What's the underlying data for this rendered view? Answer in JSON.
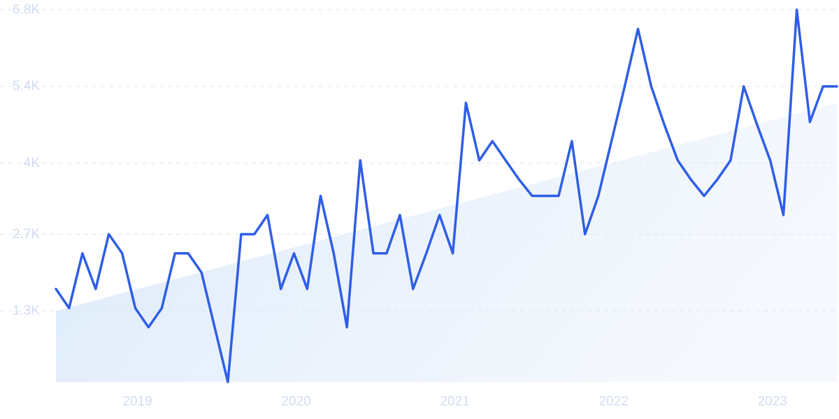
{
  "chart_data": {
    "type": "line",
    "title": "",
    "xlabel": "",
    "ylabel": "",
    "y_ticks": [
      {
        "value": 1300,
        "label": "1.3K"
      },
      {
        "value": 2700,
        "label": "2.7K"
      },
      {
        "value": 4000,
        "label": "4K"
      },
      {
        "value": 5400,
        "label": "5.4K"
      },
      {
        "value": 6800,
        "label": "6.8K"
      }
    ],
    "x_ticks": [
      {
        "value": 2019.0,
        "label": "2019"
      },
      {
        "value": 2020.0,
        "label": "2020"
      },
      {
        "value": 2021.0,
        "label": "2021"
      },
      {
        "value": 2022.0,
        "label": "2022"
      },
      {
        "value": 2023.0,
        "label": "2023"
      }
    ],
    "xlim": [
      2018.5,
      2023.42
    ],
    "ylim": [
      0,
      6800
    ],
    "grid": true,
    "colors": {
      "line": "#2f5ee6",
      "grid": "#dce6f5",
      "tick": "#d3ddf1",
      "trend_fill": "#d6e6f8"
    },
    "trend": {
      "x": [
        2018.5,
        2023.42
      ],
      "y": [
        1300,
        5100
      ]
    },
    "series": [
      {
        "x": [
          2018.5,
          2018.583,
          2018.667,
          2018.75,
          2018.833,
          2018.917,
          2019.0,
          2019.083,
          2019.167,
          2019.25,
          2019.333,
          2019.417,
          2019.5,
          2019.583,
          2019.667,
          2019.75,
          2019.833,
          2019.917,
          2020.0,
          2020.083,
          2020.167,
          2020.25,
          2020.333,
          2020.417,
          2020.5,
          2020.583,
          2020.667,
          2020.75,
          2020.833,
          2020.917,
          2021.0,
          2021.083,
          2021.167,
          2021.25,
          2021.333,
          2021.417,
          2021.5,
          2021.583,
          2021.667,
          2021.75,
          2021.833,
          2021.917,
          2022.0,
          2022.083,
          2022.167,
          2022.25,
          2022.333,
          2022.417,
          2022.5,
          2022.583,
          2022.667,
          2022.75,
          2022.833,
          2022.917,
          2023.0,
          2023.083,
          2023.167,
          2023.25,
          2023.333,
          2023.42
        ],
        "y": [
          1700,
          1350,
          2350,
          1700,
          2700,
          2350,
          1350,
          1000,
          1350,
          2350,
          2350,
          2000,
          1000,
          0,
          2700,
          2700,
          3050,
          1700,
          2350,
          1700,
          3400,
          2350,
          1000,
          4050,
          2350,
          2350,
          3050,
          1700,
          2350,
          3050,
          2350,
          5100,
          4050,
          4400,
          4050,
          3700,
          3400,
          3400,
          3400,
          4400,
          2700,
          3400,
          4400,
          5400,
          6450,
          5400,
          4700,
          4050,
          3700,
          3400,
          3700,
          4050,
          5400,
          4700,
          4050,
          3050,
          6800,
          4750,
          5400,
          5400
        ]
      }
    ]
  }
}
